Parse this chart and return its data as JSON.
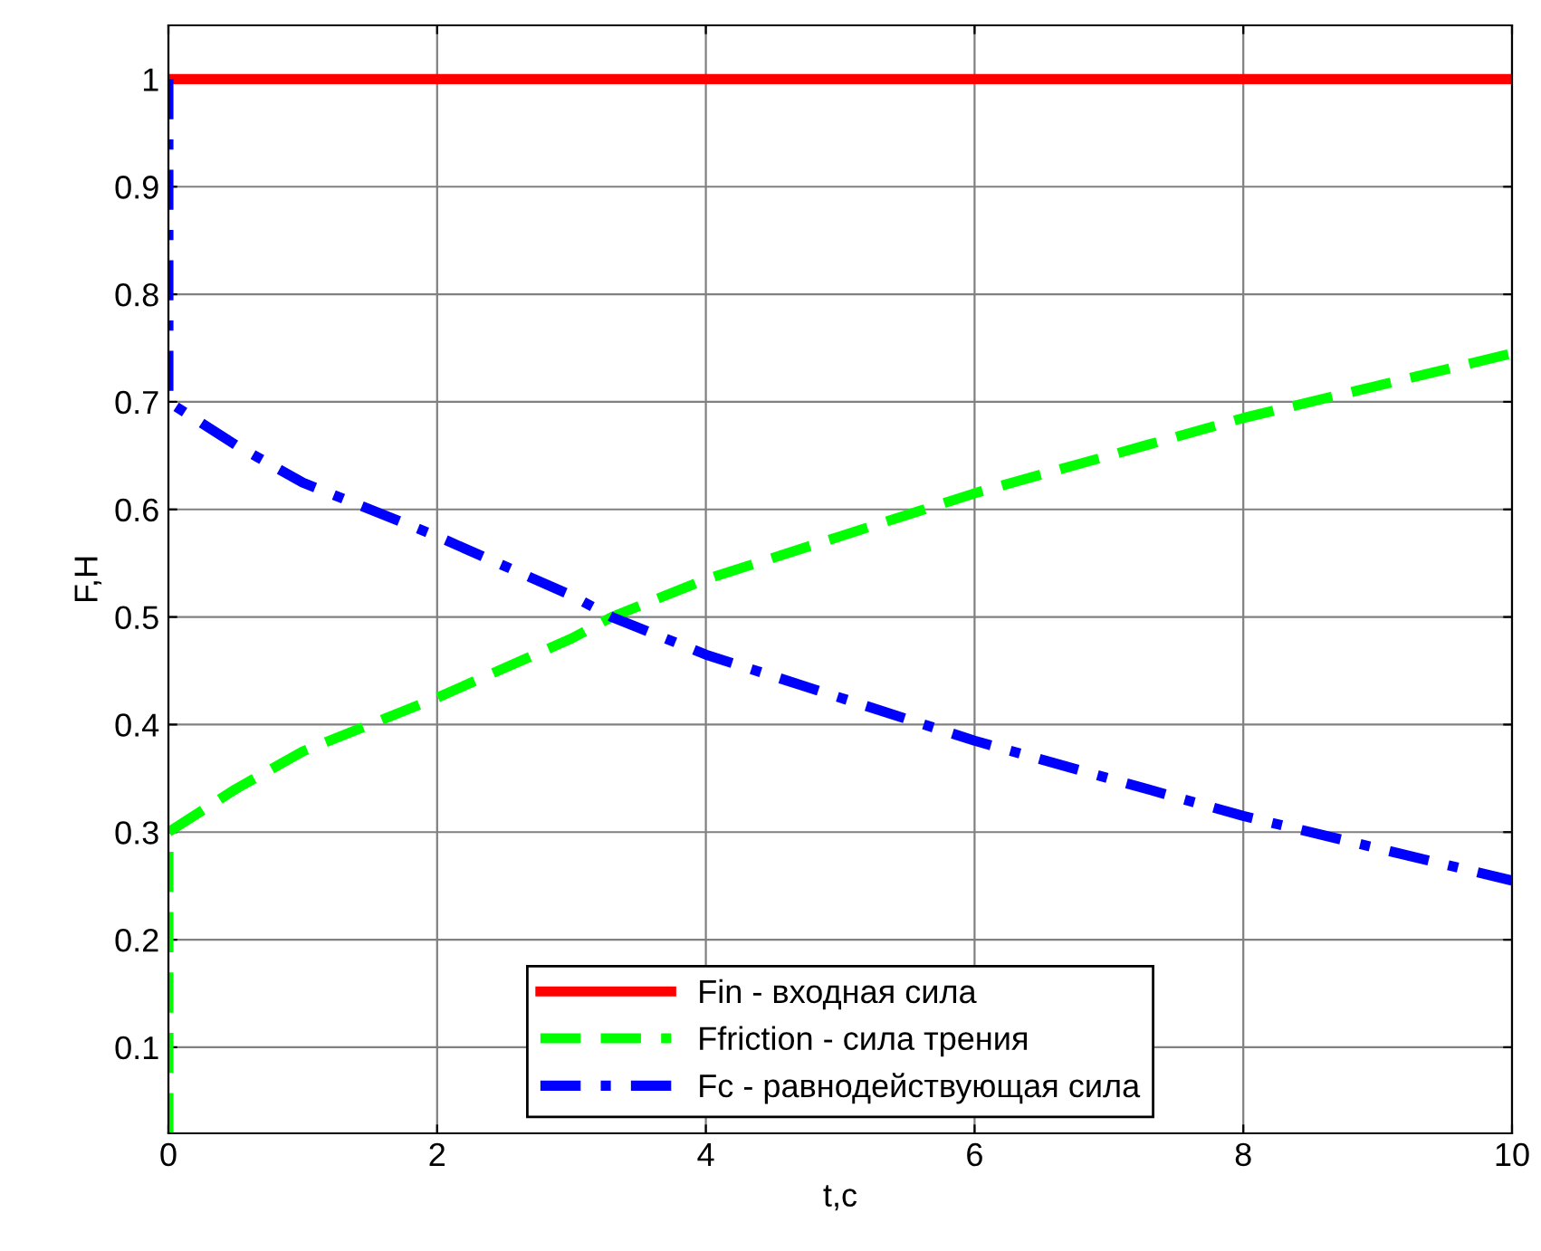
{
  "chart_data": {
    "type": "line",
    "xlabel": "t,c",
    "ylabel": "F,H",
    "xlim": [
      0,
      10
    ],
    "ylim": [
      0.02,
      1.05
    ],
    "xticks": [
      0,
      2,
      4,
      6,
      8,
      10
    ],
    "yticks": [
      0.1,
      0.2,
      0.3,
      0.4,
      0.5,
      0.6,
      0.7,
      0.8,
      0.9,
      1
    ],
    "grid": true,
    "legend": "bottom",
    "series": [
      {
        "name": "Fin - входная сила",
        "color": "#ff0000",
        "line_style": "solid",
        "x": [
          0,
          10
        ],
        "values": [
          1,
          1
        ]
      },
      {
        "name": "Ffriction - сила трения",
        "color": "#00ff00",
        "line_style": "dashed",
        "x": [
          0,
          0,
          0.5,
          1,
          2,
          3,
          3.3,
          4,
          5,
          6,
          7,
          8,
          9,
          10
        ],
        "values": [
          0.02,
          0.3,
          0.34,
          0.375,
          0.425,
          0.48,
          0.5,
          0.535,
          0.575,
          0.615,
          0.65,
          0.685,
          0.715,
          0.745
        ]
      },
      {
        "name": "Fc - равнодействующая сила",
        "color": "#0000ff",
        "line_style": "dashdot",
        "x": [
          0,
          0,
          0.5,
          1,
          2,
          3,
          3.3,
          4,
          5,
          6,
          7,
          8,
          9,
          10
        ],
        "values": [
          1,
          0.7,
          0.66,
          0.625,
          0.575,
          0.52,
          0.5,
          0.465,
          0.425,
          0.385,
          0.35,
          0.315,
          0.285,
          0.255
        ]
      }
    ]
  }
}
